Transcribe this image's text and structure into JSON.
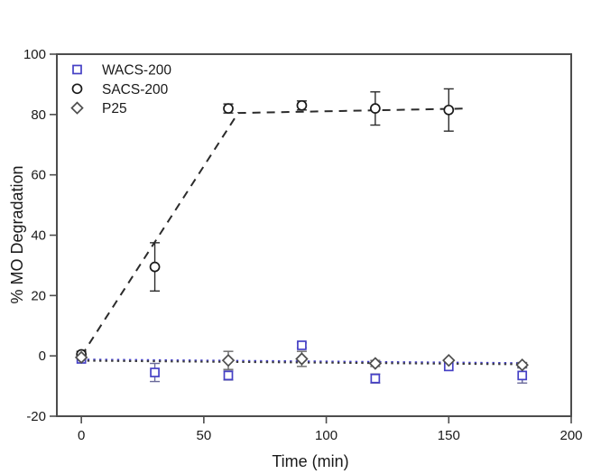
{
  "chart_data": {
    "type": "scatter",
    "title": "",
    "xlabel": "Time (min)",
    "ylabel": "% MO Degradation",
    "xlim": [
      -10,
      200
    ],
    "ylim": [
      -20,
      100
    ],
    "x_ticks": [
      0,
      50,
      100,
      150,
      200
    ],
    "y_ticks": [
      -20,
      0,
      20,
      40,
      60,
      80,
      100
    ],
    "grid": false,
    "legend_position": "top-left-inside",
    "frame_color": "#4d4d4d",
    "series": [
      {
        "name": "WACS-200",
        "marker": "square",
        "color": "#4540c5",
        "error_color": "#6a6a9a",
        "fit_line": {
          "style": "dotted",
          "color": "#4540c5",
          "points": [
            [
              0,
              -1.2
            ],
            [
              180,
              -2.4
            ]
          ]
        },
        "points": [
          {
            "x": 0,
            "y": -1.0,
            "err": 0
          },
          {
            "x": 30,
            "y": -5.5,
            "err": 3.0
          },
          {
            "x": 60,
            "y": -6.5,
            "err": 1.5
          },
          {
            "x": 90,
            "y": 3.5,
            "err": 0.8
          },
          {
            "x": 120,
            "y": -7.5,
            "err": 1.5
          },
          {
            "x": 150,
            "y": -3.5,
            "err": 0
          },
          {
            "x": 180,
            "y": -6.5,
            "err": 2.5
          }
        ]
      },
      {
        "name": "SACS-200",
        "marker": "circle",
        "color": "#1a1a1a",
        "error_color": "#2b2b2b",
        "fit_line": {
          "style": "dashed",
          "color": "#2b2b2b",
          "points": [
            [
              0,
              0
            ],
            [
              64,
              80.5
            ],
            [
              158,
              82
            ]
          ]
        },
        "points": [
          {
            "x": 0,
            "y": 0.5,
            "err": 1.0
          },
          {
            "x": 30,
            "y": 29.5,
            "err": 8.0
          },
          {
            "x": 60,
            "y": 82.0,
            "err": 1.5
          },
          {
            "x": 90,
            "y": 83.0,
            "err": 1.5
          },
          {
            "x": 120,
            "y": 82.0,
            "err": 5.5
          },
          {
            "x": 150,
            "y": 81.5,
            "err": 7.0
          }
        ]
      },
      {
        "name": "P25",
        "marker": "diamond",
        "color": "#4d4d4d",
        "error_color": "#666666",
        "fit_line": {
          "style": "dotted",
          "color": "#3c3c3c",
          "points": [
            [
              0,
              -1.6
            ],
            [
              180,
              -2.8
            ]
          ]
        },
        "points": [
          {
            "x": 0,
            "y": -0.5,
            "err": 0
          },
          {
            "x": 60,
            "y": -1.5,
            "err": 3.0
          },
          {
            "x": 90,
            "y": -1.0,
            "err": 2.5
          },
          {
            "x": 120,
            "y": -2.5,
            "err": 1.0
          },
          {
            "x": 150,
            "y": -1.5,
            "err": 0
          },
          {
            "x": 180,
            "y": -3.0,
            "err": 0.8
          }
        ]
      }
    ],
    "legend": {
      "labels": [
        "WACS-200",
        "SACS-200",
        "P25"
      ]
    }
  }
}
